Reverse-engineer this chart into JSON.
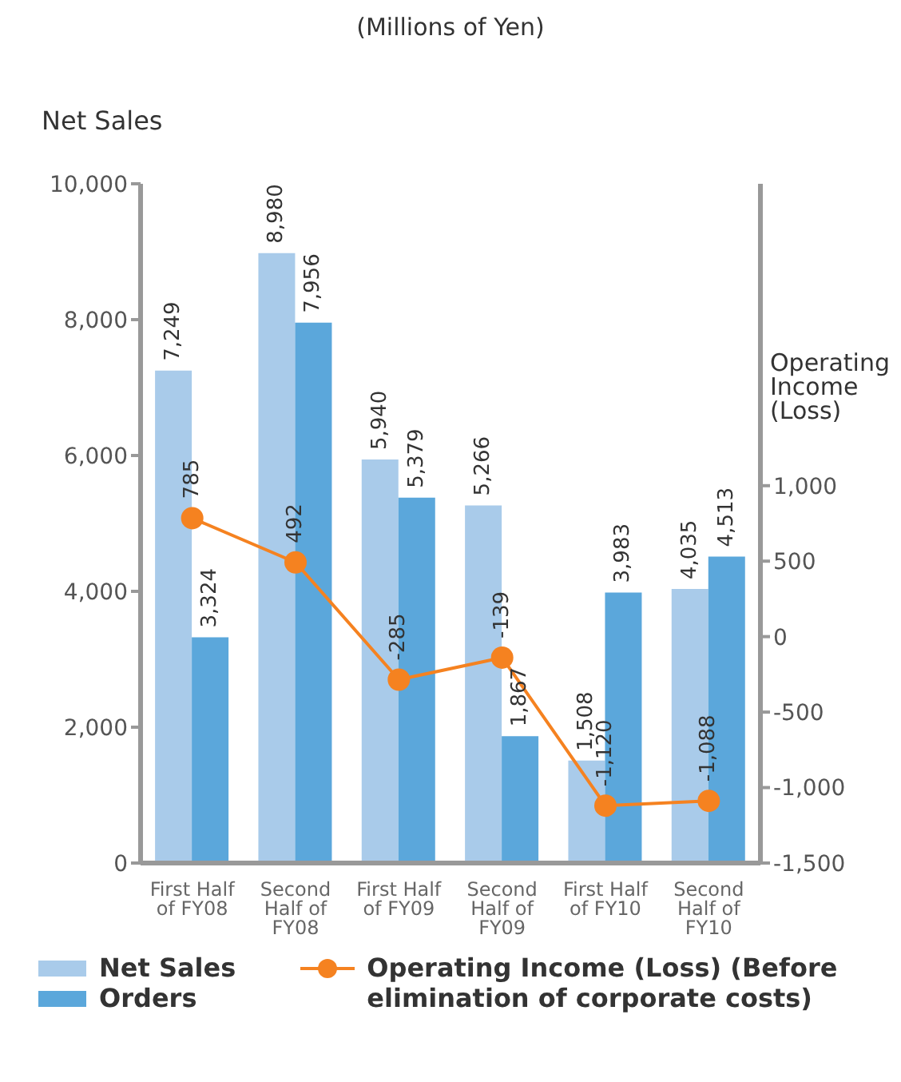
{
  "chart_data": {
    "type": "bar",
    "title": "(Millions of Yen)",
    "ylabel": "Net Sales",
    "y2label": "Operating Income (Loss)",
    "categories": [
      "First Half of FY08",
      "Second Half of FY08",
      "First Half of FY09",
      "Second Half of FY09",
      "First Half of FY10",
      "Second Half of FY10"
    ],
    "series": [
      {
        "name": "Net Sales",
        "color": "#a9cbea",
        "values": [
          7249,
          8980,
          5940,
          5266,
          1508,
          4035
        ],
        "value_labels": [
          "7,249",
          "8,980",
          "5,940",
          "5,266",
          "1,508",
          "4,035"
        ]
      },
      {
        "name": "Orders",
        "color": "#5ba7db",
        "values": [
          3324,
          7956,
          5379,
          1867,
          3983,
          4513
        ],
        "value_labels": [
          "3,324",
          "7,956",
          "5,379",
          "1,867",
          "3,983",
          "4,513"
        ]
      },
      {
        "name": "Operating Income (Loss) (Before elimination of corporate costs)",
        "type": "line",
        "axis": "y2",
        "color": "#f58220",
        "values": [
          785,
          492,
          -285,
          -139,
          -1120,
          -1088
        ],
        "value_labels": [
          "785",
          "492",
          "-285",
          "-139",
          "-1,120",
          "-1,088"
        ]
      }
    ],
    "ylim": [
      0,
      10000
    ],
    "yticks": [
      0,
      {
        "value": 2000,
        "label": "2,000"
      },
      {
        "value": 4000,
        "label": "4,000"
      },
      {
        "value": 6000,
        "label": "6,000"
      },
      {
        "value": 8000,
        "label": "8,000"
      },
      {
        "value": 10000,
        "label": "10,000"
      }
    ],
    "y2lim": [
      -1500,
      3000
    ],
    "y2ticks": [
      {
        "value": -1500,
        "label": "-1,500"
      },
      {
        "value": -1000,
        "label": "-1,000"
      },
      -500,
      0,
      500,
      {
        "value": 1000,
        "label": "1,000"
      }
    ],
    "legend": "bottom",
    "marker": "circle",
    "line_style": "solid"
  }
}
